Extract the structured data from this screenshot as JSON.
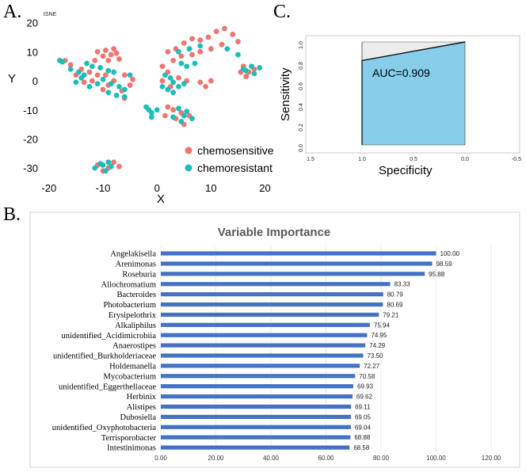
{
  "chart_data": [
    {
      "panel": "A.",
      "type": "scatter",
      "subtitle": "tSNE",
      "xlabel": "X",
      "ylabel": "Y",
      "xlim": [
        -21,
        23
      ],
      "ylim": [
        -33.5,
        21
      ],
      "xticks": [
        -20,
        -10,
        0,
        10,
        20
      ],
      "yticks": [
        20,
        10,
        0,
        -10,
        -20,
        -30
      ],
      "legend_position": "bottom-right",
      "colors": {
        "chemosensitive": "#F07470",
        "chemoresistant": "#1DBDB9"
      },
      "series": [
        {
          "name": "chemosensitive",
          "points": [
            [
              -11,
              10
            ],
            [
              -9.5,
              10.5
            ],
            [
              -8,
              11
            ],
            [
              -10,
              8.5
            ],
            [
              -8.5,
              9
            ],
            [
              -7.5,
              9.5
            ],
            [
              -11.5,
              7
            ],
            [
              -9,
              7
            ],
            [
              -7,
              7.5
            ],
            [
              -12.5,
              3
            ],
            [
              -11,
              2
            ],
            [
              -9.5,
              2
            ],
            [
              -12,
              0
            ],
            [
              -13.5,
              -0.5
            ],
            [
              -8,
              0
            ],
            [
              -6,
              2
            ],
            [
              -4.5,
              0.5
            ],
            [
              -17,
              7
            ],
            [
              -16,
              5.5
            ],
            [
              -15,
              2
            ],
            [
              -14,
              4
            ],
            [
              -10,
              -3
            ],
            [
              -9,
              -1.5
            ],
            [
              -6.5,
              -3.5
            ],
            [
              -5,
              -1.5
            ],
            [
              -6,
              -6
            ],
            [
              2,
              10
            ],
            [
              3.5,
              11
            ],
            [
              5,
              13
            ],
            [
              6.5,
              14.5
            ],
            [
              8,
              14
            ],
            [
              9.5,
              15
            ],
            [
              11,
              17
            ],
            [
              12.5,
              18
            ],
            [
              14,
              16
            ],
            [
              15,
              13.5
            ],
            [
              12,
              12.5
            ],
            [
              10,
              11
            ],
            [
              8,
              10
            ],
            [
              6.5,
              9
            ],
            [
              4.5,
              8.5
            ],
            [
              3,
              7
            ],
            [
              1,
              5
            ],
            [
              2,
              3
            ],
            [
              1,
              0
            ],
            [
              2.5,
              -2
            ],
            [
              4,
              1
            ],
            [
              5.5,
              0
            ],
            [
              8,
              -0.5
            ],
            [
              10,
              0
            ],
            [
              9,
              -2
            ],
            [
              2,
              -9
            ],
            [
              3,
              -10
            ],
            [
              4.5,
              -11
            ],
            [
              6,
              -12
            ],
            [
              3.5,
              -13
            ],
            [
              5,
              -15
            ],
            [
              1.5,
              -12
            ],
            [
              16,
              5
            ],
            [
              17,
              3
            ],
            [
              16.5,
              1.5
            ],
            [
              18,
              4
            ],
            [
              15.5,
              3
            ],
            [
              -11,
              -29
            ],
            [
              -9,
              -30
            ],
            [
              -8,
              -28
            ],
            [
              -7,
              -29.5
            ],
            [
              -10,
              -31
            ]
          ]
        },
        {
          "name": "chemoresistant",
          "points": [
            [
              -18,
              7
            ],
            [
              -17.5,
              6.5
            ],
            [
              -16,
              4
            ],
            [
              -14.5,
              3
            ],
            [
              -13.5,
              2
            ],
            [
              -12,
              5
            ],
            [
              -13,
              6
            ],
            [
              -10.5,
              4.5
            ],
            [
              -9,
              3.5
            ],
            [
              -8,
              3
            ],
            [
              -10,
              0.5
            ],
            [
              -8.5,
              -1
            ],
            [
              -7,
              -2
            ],
            [
              -6,
              -3
            ],
            [
              -7.5,
              -5
            ],
            [
              -9,
              -4
            ],
            [
              -11,
              -1
            ],
            [
              -12.5,
              -2
            ],
            [
              -14,
              1
            ],
            [
              -15,
              -0.5
            ],
            [
              -6,
              -5.5
            ],
            [
              -5,
              2
            ],
            [
              -2,
              -9
            ],
            [
              -1.5,
              -10
            ],
            [
              -1,
              -11
            ],
            [
              0,
              -10
            ],
            [
              -1,
              -12.5
            ],
            [
              1.5,
              2
            ],
            [
              2.5,
              1
            ],
            [
              3,
              -0.5
            ],
            [
              4,
              -2
            ],
            [
              5,
              -1
            ],
            [
              2,
              -3
            ],
            [
              3,
              -4
            ],
            [
              1,
              -2
            ],
            [
              4.5,
              6
            ],
            [
              5.5,
              5
            ],
            [
              7,
              6
            ],
            [
              4,
              10
            ],
            [
              6,
              11
            ],
            [
              8,
              12
            ],
            [
              13,
              11
            ],
            [
              15,
              9
            ],
            [
              3,
              -12.5
            ],
            [
              4.5,
              -14
            ],
            [
              5,
              -12
            ],
            [
              6.5,
              -13
            ],
            [
              5.5,
              -10.5
            ],
            [
              4,
              -9.5
            ],
            [
              16,
              4
            ],
            [
              17.5,
              5
            ],
            [
              18,
              2.5
            ],
            [
              19,
              4.5
            ],
            [
              16.5,
              3.5
            ],
            [
              -11.5,
              -30
            ],
            [
              -10,
              -29
            ],
            [
              -9.5,
              -31
            ],
            [
              -8.5,
              -29.5
            ],
            [
              -10.5,
              -28.5
            ],
            [
              -9,
              -28
            ]
          ]
        }
      ]
    },
    {
      "panel": "C.",
      "type": "line",
      "xlabel": "Specificity",
      "ylabel": "Sensitivity",
      "xlim": [
        1.5,
        -0.5
      ],
      "ylim": [
        0,
        1
      ],
      "xticks": [
        "1.5",
        "1.0",
        "0.5",
        "0.0",
        "-0.5"
      ],
      "yticks": [
        "0.0",
        "0.2",
        "0.4",
        "0.6",
        "0.8",
        "1.0"
      ],
      "annotation": "AUC=0.909",
      "roc_curve": {
        "specificity": [
          1.0,
          1.0,
          0.0
        ],
        "sensitivity": [
          0.0,
          0.82,
          1.0
        ]
      },
      "fill_color": "#87CEEB"
    },
    {
      "panel": "B.",
      "type": "bar",
      "orientation": "horizontal",
      "title": "Variable Importance",
      "xlim": [
        0,
        120
      ],
      "xticks": [
        "0.00",
        "20.00",
        "40.00",
        "60.00",
        "80.00",
        "100.00",
        "120.00"
      ],
      "bar_color": "#4472C4",
      "categories": [
        "Angelakisella",
        "Arenimonas",
        "Roseburia",
        "Allochromatium",
        "Bacteroides",
        "Photobacterium",
        "Erysipelothrix",
        "Alkaliphilus",
        "unidentified_Acidimicrobiia",
        "Anaerostipes",
        "unidentified_Burkholderiaceae",
        "Holdemanella",
        "Mycobacterium",
        "unidentified_Eggerthellaceae",
        "Herbinix",
        "Alistipes",
        "Dubosiella",
        "unidentified_Oxyphotobacteria",
        "Terrisporobacter",
        "Intestinimonas"
      ],
      "values": [
        100.0,
        98.59,
        95.88,
        83.33,
        80.79,
        80.69,
        79.21,
        75.94,
        74.95,
        74.29,
        73.5,
        72.27,
        70.58,
        69.93,
        69.62,
        69.11,
        69.05,
        69.04,
        68.88,
        68.58
      ],
      "value_labels": [
        "100.00",
        "98.59",
        "95.88",
        "83.33",
        "80.79",
        "80.69",
        "79.21",
        "75.94",
        "74.95",
        "74.29",
        "73.50",
        "72.27",
        "70.58",
        "69.93",
        "69.62",
        "69.11",
        "69.05",
        "69.04",
        "68.88",
        "68.58"
      ]
    }
  ]
}
